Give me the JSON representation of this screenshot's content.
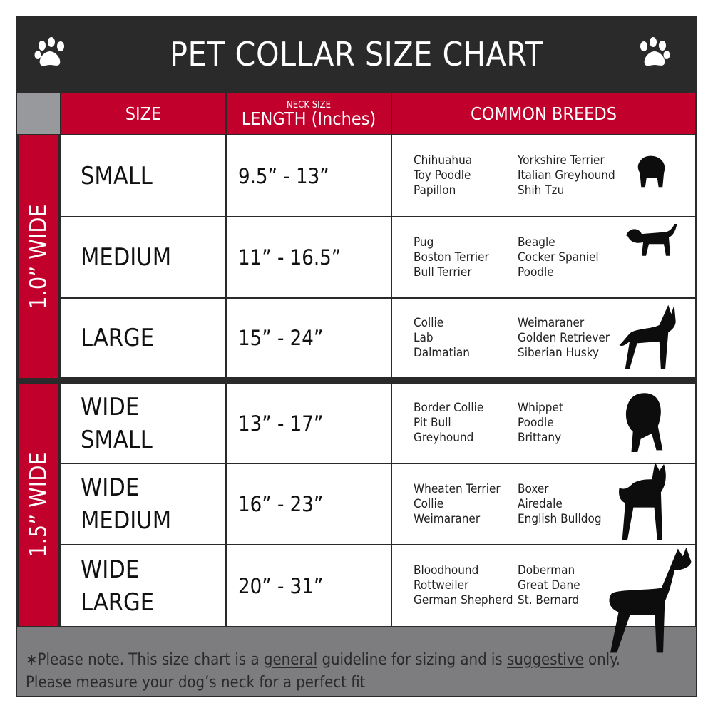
{
  "title": "PET COLLAR SIZE CHART",
  "icons": {
    "left": "paw-icon",
    "right": "paw-icon"
  },
  "colors": {
    "accent": "#c1002b",
    "dark": "#2a2a2a",
    "footer": "#7d7d80",
    "corner": "#98999c"
  },
  "headers": {
    "size": "SIZE",
    "length_small": "NECK SIZE",
    "length": "LENGTH (Inches)",
    "breeds": "COMMON BREEDS"
  },
  "groups": [
    {
      "label": "1.0” WIDE"
    },
    {
      "label": "1.5” WIDE"
    }
  ],
  "rows": [
    {
      "size": [
        "SMALL"
      ],
      "length": "9.5” - 13”",
      "breeds1": [
        "Chihuahua",
        "Toy Poodle",
        "Papillon"
      ],
      "breeds2": [
        "Yorkshire Terrier",
        "Italian Greyhound",
        "Shih Tzu"
      ],
      "icon": "small-dog-icon"
    },
    {
      "size": [
        "MEDIUM"
      ],
      "length": "11” - 16.5”",
      "breeds1": [
        "Pug",
        "Boston Terrier",
        "Bull Terrier"
      ],
      "breeds2": [
        "Beagle",
        "Cocker Spaniel",
        "Poodle"
      ],
      "icon": "medium-dog-icon"
    },
    {
      "size": [
        "LARGE"
      ],
      "length": "15” - 24”",
      "breeds1": [
        "Collie",
        "Lab",
        "Dalmatian"
      ],
      "breeds2": [
        "Weimaraner",
        "Golden Retriever",
        "Siberian Husky"
      ],
      "icon": "large-dog-icon"
    },
    {
      "size": [
        "WIDE",
        "SMALL"
      ],
      "length": "13” - 17”",
      "breeds1": [
        "Border Collie",
        "Pit Bull",
        "Greyhound"
      ],
      "breeds2": [
        "Whippet",
        "Poodle",
        "Brittany"
      ],
      "icon": "bulldog-icon"
    },
    {
      "size": [
        "WIDE",
        "MEDIUM"
      ],
      "length": "16” - 23”",
      "breeds1": [
        "Wheaten Terrier",
        "Collie",
        "Weimaraner"
      ],
      "breeds2": [
        "Boxer",
        "Airedale",
        "English Bulldog"
      ],
      "icon": "pitbull-icon"
    },
    {
      "size": [
        "WIDE",
        "LARGE"
      ],
      "length": "20” - 31”",
      "breeds1": [
        "Bloodhound",
        "Rottweiler",
        "German Shepherd"
      ],
      "breeds2": [
        "Doberman",
        "Great Dane",
        "St. Bernard"
      ],
      "icon": "doberman-icon"
    }
  ],
  "footer": {
    "p1": "∗Please note. This size chart is a ",
    "u1": "general",
    "p2": " guideline for sizing and is ",
    "u2": "suggestive",
    "p3": " only.",
    "line2": "Please measure your dog’s neck for a perfect fit"
  }
}
